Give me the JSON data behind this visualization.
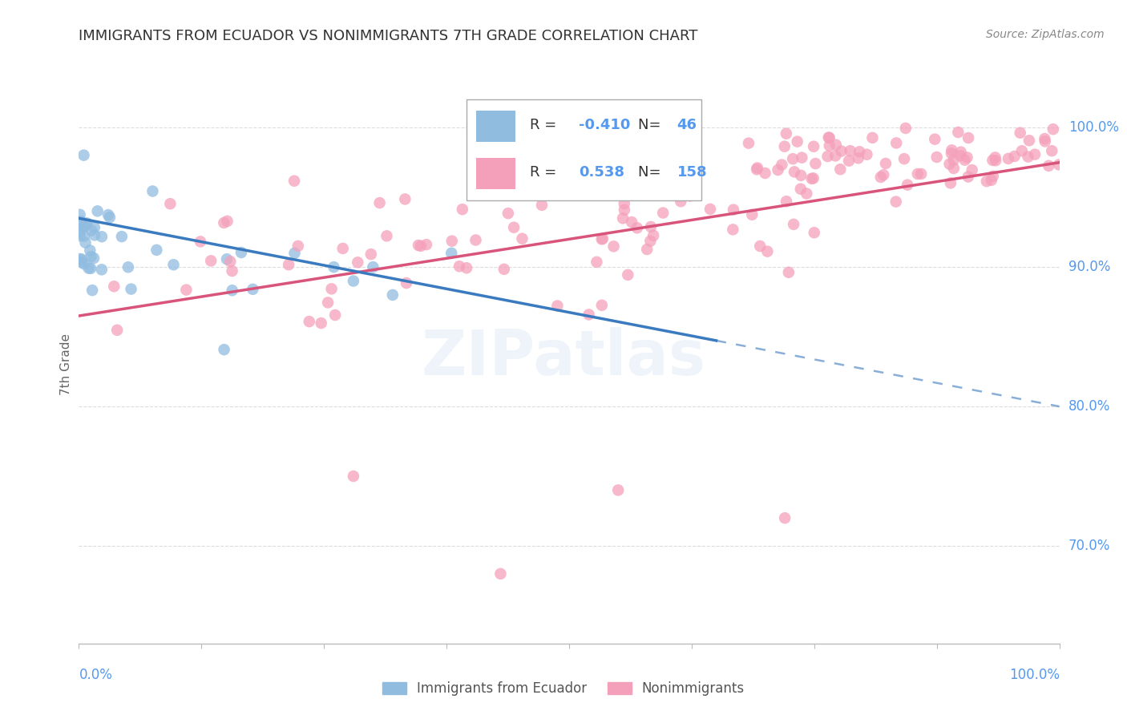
{
  "title": "IMMIGRANTS FROM ECUADOR VS NONIMMIGRANTS 7TH GRADE CORRELATION CHART",
  "source": "Source: ZipAtlas.com",
  "ylabel": "7th Grade",
  "legend_blue_r": "-0.410",
  "legend_blue_n": "46",
  "legend_pink_r": "0.538",
  "legend_pink_n": "158",
  "blue_color": "#90bce0",
  "pink_color": "#f5a0bb",
  "blue_line_color": "#3a7abf",
  "pink_line_color": "#d9547a",
  "text_color": "#5599ee",
  "label_color": "#666666",
  "grid_color": "#dddddd",
  "blue_trend_start_x": 0,
  "blue_trend_end_solid_x": 65,
  "blue_trend_end_dash_x": 100,
  "blue_trend_start_y": 93.5,
  "blue_trend_end_y": 80.0,
  "pink_trend_start_x": 0,
  "pink_trend_end_x": 100,
  "pink_trend_start_y": 86.5,
  "pink_trend_end_y": 97.5,
  "xlim": [
    0,
    100
  ],
  "ylim": [
    63,
    103
  ],
  "yticks": [
    70,
    80,
    90,
    100
  ],
  "ytick_labels": [
    "70.0%",
    "80.0%",
    "90.0%",
    "100.0%"
  ]
}
